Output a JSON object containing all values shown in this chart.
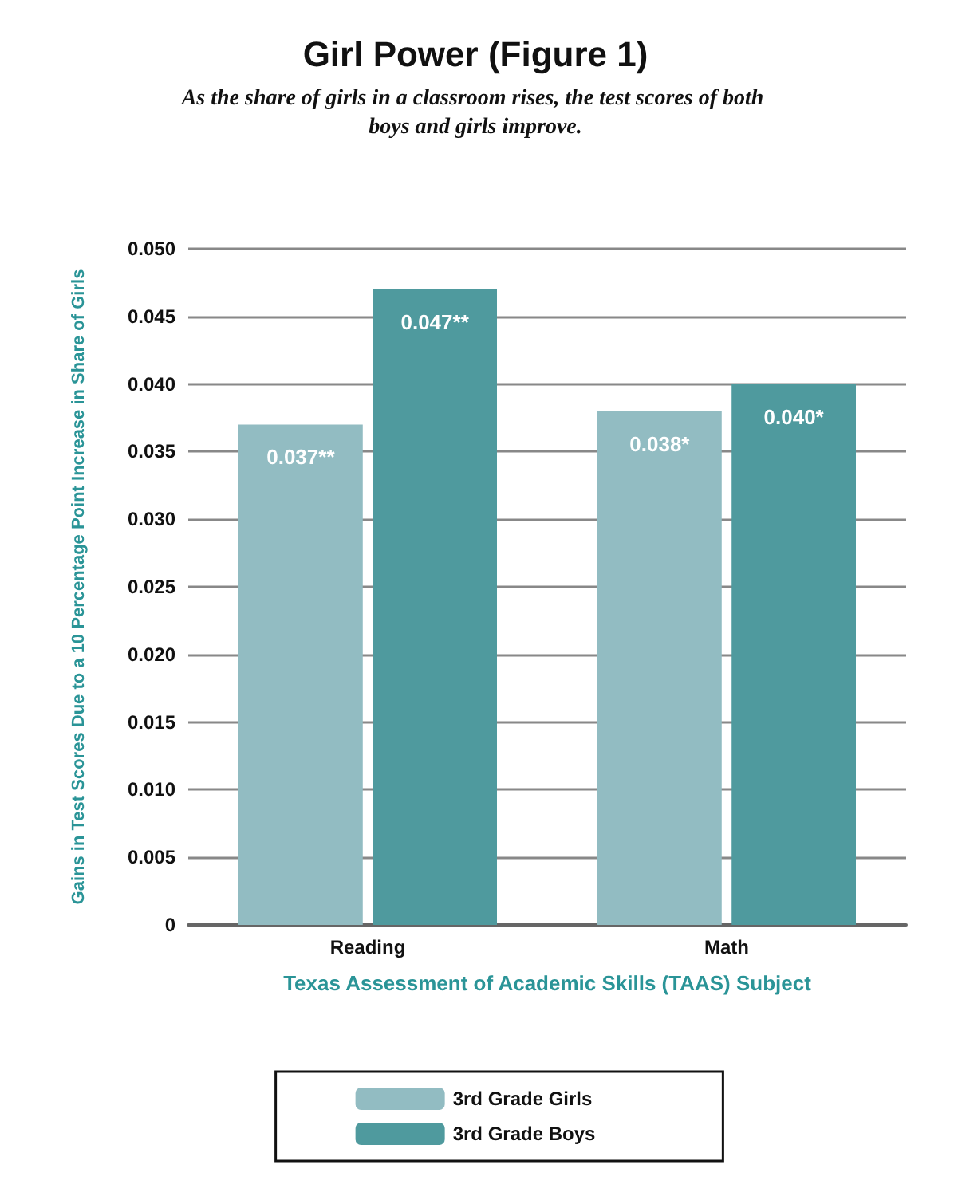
{
  "chart_data": {
    "type": "bar",
    "title": "Girl Power (Figure 1)",
    "subtitle": "As the share of girls in a classroom rises, the test scores of both boys and girls improve.",
    "xlabel": "Texas Assessment of Academic Skills (TAAS) Subject",
    "ylabel": "Gains in Test Scores Due to a 10 Percentage Point Increase in Share of Girls",
    "categories": [
      "Reading",
      "Math"
    ],
    "series": [
      {
        "name": "3rd Grade Girls",
        "color": "#92bcc2",
        "values": [
          0.037,
          0.038
        ],
        "value_labels": [
          "0.037**",
          "0.038*"
        ]
      },
      {
        "name": "3rd Grade Boys",
        "color": "#4f9a9e",
        "values": [
          0.047,
          0.04
        ],
        "value_labels": [
          "0.047**",
          "0.040*"
        ]
      }
    ],
    "ylim": [
      0,
      0.05
    ],
    "yticks": [
      0,
      {
        "value": 0.005,
        "label": "0.005"
      },
      {
        "value": 0.01,
        "label": "0.010"
      },
      {
        "value": 0.015,
        "label": "0.015"
      },
      {
        "value": 0.02,
        "label": "0.020"
      },
      {
        "value": 0.025,
        "label": "0.025"
      },
      {
        "value": 0.03,
        "label": "0.030"
      },
      {
        "value": 0.035,
        "label": "0.035"
      },
      {
        "value": 0.04,
        "label": "0.040"
      },
      {
        "value": 0.045,
        "label": "0.045"
      },
      {
        "value": 0.05,
        "label": "0.050"
      }
    ],
    "grid": "y",
    "legend": "bottom"
  }
}
